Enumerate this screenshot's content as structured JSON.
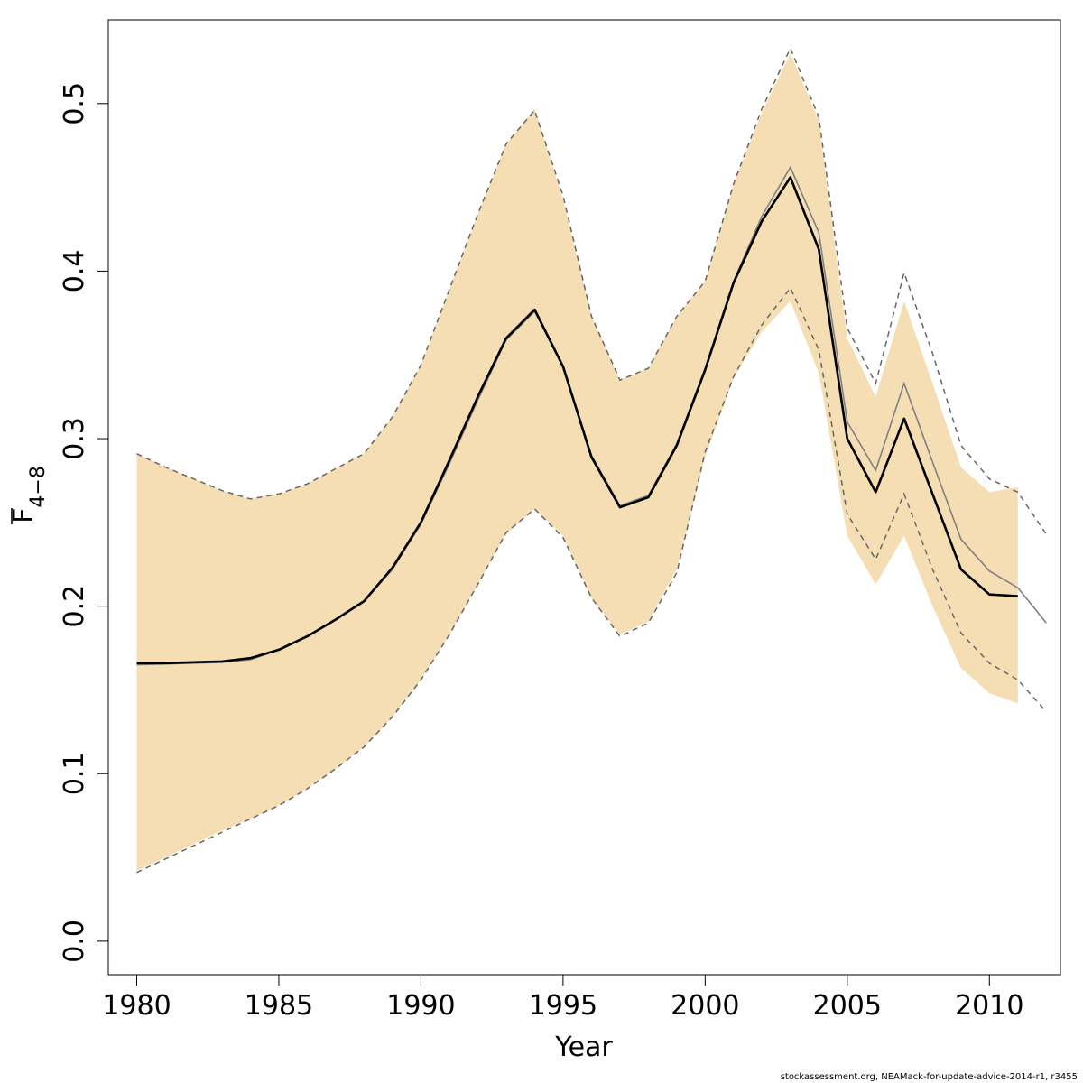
{
  "chart_data": {
    "type": "line",
    "title": "",
    "xlabel": "Year",
    "ylabel_main": "F",
    "ylabel_sub": "4−8",
    "xlim": [
      1979,
      2012.5
    ],
    "ylim": [
      -0.02,
      0.55
    ],
    "x_ticks": [
      1980,
      1985,
      1990,
      1995,
      2000,
      2005,
      2010
    ],
    "x_tick_labels": [
      "1980",
      "1985",
      "1990",
      "1995",
      "2000",
      "2005",
      "2010"
    ],
    "y_ticks": [
      0.0,
      0.1,
      0.2,
      0.3,
      0.4,
      0.5
    ],
    "y_tick_labels": [
      "0.0",
      "0.1",
      "0.2",
      "0.3",
      "0.4",
      "0.5"
    ],
    "grid": false,
    "colors": {
      "band": "#f5deb3",
      "estimate": "#000000",
      "previous": "#808080",
      "previous_ci": "#666666"
    },
    "years": [
      1980,
      1981,
      1982,
      1983,
      1984,
      1985,
      1986,
      1987,
      1988,
      1989,
      1990,
      1991,
      1992,
      1993,
      1994,
      1995,
      1996,
      1997,
      1998,
      1999,
      2000,
      2001,
      2002,
      2003,
      2004,
      2005,
      2006,
      2007,
      2008,
      2009,
      2010,
      2011
    ],
    "band_upper": [
      0.291,
      0.283,
      0.276,
      0.269,
      0.264,
      0.267,
      0.273,
      0.282,
      0.291,
      0.313,
      0.344,
      0.389,
      0.434,
      0.476,
      0.497,
      0.443,
      0.373,
      0.335,
      0.342,
      0.373,
      0.394,
      0.452,
      0.495,
      0.53,
      0.49,
      0.36,
      0.325,
      0.382,
      0.333,
      0.283,
      0.268,
      0.271
    ],
    "band_lower": [
      0.042,
      0.05,
      0.058,
      0.066,
      0.073,
      0.081,
      0.091,
      0.103,
      0.116,
      0.134,
      0.156,
      0.183,
      0.213,
      0.243,
      0.258,
      0.242,
      0.205,
      0.183,
      0.191,
      0.222,
      0.289,
      0.336,
      0.364,
      0.382,
      0.339,
      0.242,
      0.213,
      0.242,
      0.2,
      0.163,
      0.148,
      0.142
    ],
    "series": [
      {
        "values": [
          0.166,
          0.166,
          0.1665,
          0.167,
          0.169,
          0.174,
          0.182,
          0.192,
          0.203,
          0.223,
          0.25,
          0.287,
          0.325,
          0.36,
          0.377,
          0.343,
          0.289,
          0.259,
          0.265,
          0.296,
          0.341,
          0.393,
          0.43,
          0.456,
          0.413,
          0.3,
          0.268,
          0.312,
          0.267,
          0.222,
          0.207,
          0.206
        ]
      },
      {
        "x": [
          1980,
          1981,
          1982,
          1983,
          1984,
          1985,
          1986,
          1987,
          1988,
          1989,
          1990,
          1991,
          1992,
          1993,
          1994,
          1995,
          1996,
          1997,
          1998,
          1999,
          2000,
          2001,
          2002,
          2003,
          2004,
          2005,
          2006,
          2007,
          2008,
          2009,
          2010,
          2011,
          2012
        ],
        "values": [
          0.165,
          0.1655,
          0.166,
          0.1665,
          0.168,
          0.174,
          0.182,
          0.192,
          0.203,
          0.222,
          0.249,
          0.285,
          0.323,
          0.359,
          0.376,
          0.343,
          0.29,
          0.26,
          0.266,
          0.297,
          0.342,
          0.394,
          0.433,
          0.462,
          0.423,
          0.31,
          0.281,
          0.333,
          0.286,
          0.24,
          0.221,
          0.211,
          0.19
        ],
        "upper": [
          0.291,
          0.283,
          0.276,
          0.269,
          0.264,
          0.267,
          0.273,
          0.282,
          0.291,
          0.313,
          0.344,
          0.389,
          0.434,
          0.476,
          0.496,
          0.445,
          0.373,
          0.335,
          0.342,
          0.373,
          0.394,
          0.452,
          0.497,
          0.533,
          0.492,
          0.366,
          0.333,
          0.399,
          0.351,
          0.296,
          0.276,
          0.268,
          0.243
        ],
        "lower": [
          0.041,
          0.049,
          0.057,
          0.065,
          0.073,
          0.081,
          0.091,
          0.103,
          0.116,
          0.134,
          0.156,
          0.183,
          0.213,
          0.244,
          0.258,
          0.241,
          0.205,
          0.182,
          0.19,
          0.22,
          0.292,
          0.337,
          0.368,
          0.39,
          0.353,
          0.255,
          0.228,
          0.267,
          0.222,
          0.184,
          0.166,
          0.156,
          0.137
        ]
      }
    ]
  },
  "footer": "stockassessment.org, NEAMack-for-update-advice-2014-r1, r3455"
}
